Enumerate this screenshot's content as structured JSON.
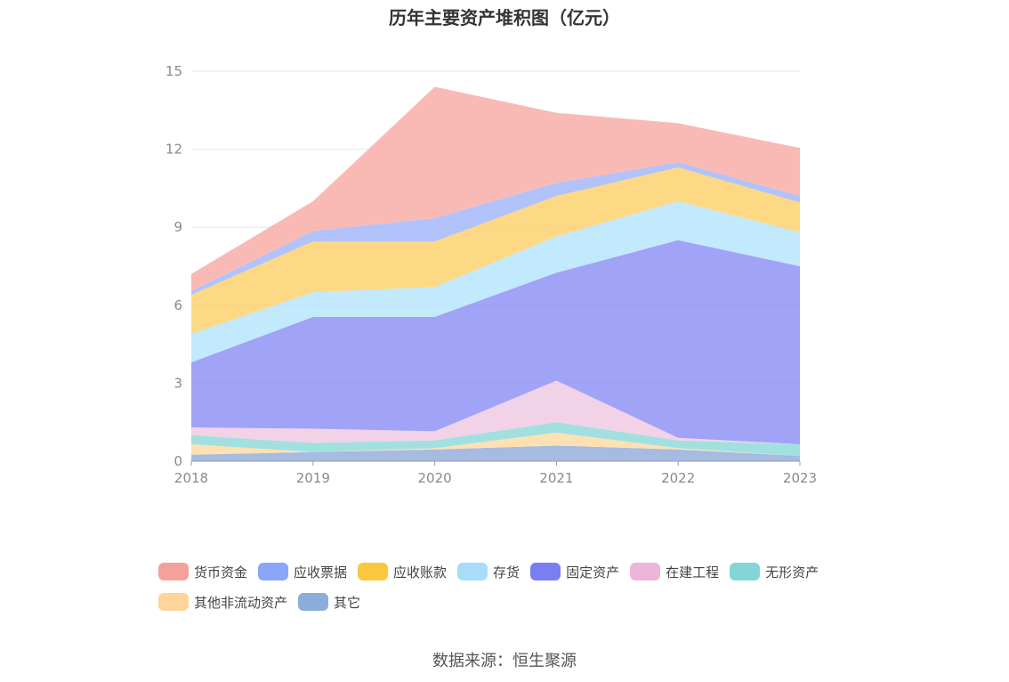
{
  "title": "历年主要资产堆积图（亿元）",
  "source": "数据来源：恒生聚源",
  "chart_data": {
    "type": "area",
    "stacked": true,
    "x": [
      "2018",
      "2019",
      "2020",
      "2021",
      "2022",
      "2023"
    ],
    "ylim": [
      0,
      15
    ],
    "yticks": [
      "0",
      "3",
      "6",
      "9",
      "12",
      "15"
    ],
    "grid": true,
    "legend_position": "bottom",
    "series": [
      {
        "name": "其它",
        "color": "#8eaad9",
        "values": [
          0.25,
          0.35,
          0.45,
          0.6,
          0.45,
          0.2
        ]
      },
      {
        "name": "其他非流动资产",
        "color": "#fdd9a0",
        "values": [
          0.4,
          0.0,
          0.05,
          0.5,
          0.05,
          0.0
        ]
      },
      {
        "name": "无形资产",
        "color": "#8bd8d8",
        "values": [
          0.35,
          0.35,
          0.3,
          0.4,
          0.3,
          0.45
        ]
      },
      {
        "name": "在建工程",
        "color": "#efc7e0",
        "values": [
          0.3,
          0.55,
          0.35,
          1.6,
          0.1,
          0.0
        ]
      },
      {
        "name": "固定资产",
        "color": "#8a8cf5",
        "values": [
          2.5,
          4.3,
          4.4,
          4.15,
          7.6,
          6.85
        ]
      },
      {
        "name": "存货",
        "color": "#b3e3fb",
        "values": [
          1.1,
          0.95,
          1.15,
          1.4,
          1.5,
          1.3
        ]
      },
      {
        "name": "应收账款",
        "color": "#fdd068",
        "values": [
          1.5,
          1.95,
          1.75,
          1.55,
          1.3,
          1.15
        ]
      },
      {
        "name": "应收票据",
        "color": "#9db4f9",
        "values": [
          0.15,
          0.4,
          0.9,
          0.5,
          0.2,
          0.25
        ]
      },
      {
        "name": "货币资金",
        "color": "#f8a9a3",
        "values": [
          0.65,
          1.15,
          5.05,
          2.7,
          1.5,
          1.85
        ]
      }
    ]
  },
  "legend": [
    {
      "label": "货币资金",
      "color": "#f5a19b"
    },
    {
      "label": "应收票据",
      "color": "#8aa6f7"
    },
    {
      "label": "应收账款",
      "color": "#fbc73f"
    },
    {
      "label": "存货",
      "color": "#a8ddf9"
    },
    {
      "label": "固定资产",
      "color": "#7b7ef0"
    },
    {
      "label": "在建工程",
      "color": "#ebb6d9"
    },
    {
      "label": "无形资产",
      "color": "#82d6d6"
    },
    {
      "label": "其他非流动资产",
      "color": "#fdd49a"
    },
    {
      "label": "其它",
      "color": "#8badd9"
    }
  ]
}
